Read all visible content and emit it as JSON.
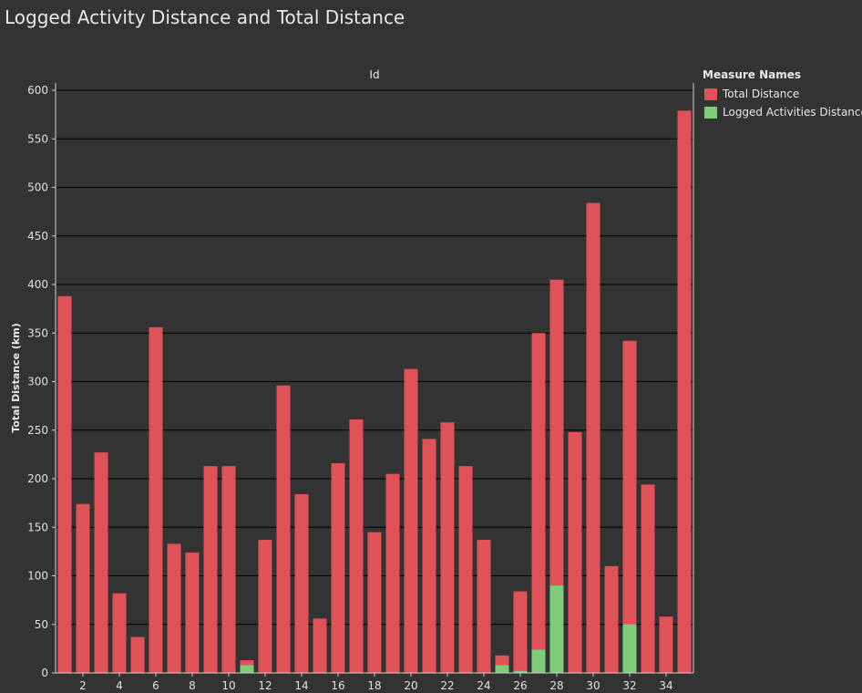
{
  "chart_data": {
    "type": "bar",
    "title": "Logged Activity Distance and Total Distance",
    "column_header": "Id",
    "ylabel": "Total Distance (km)",
    "ylim": [
      0,
      600
    ],
    "yticks": [
      0,
      50,
      100,
      150,
      200,
      250,
      300,
      350,
      400,
      450,
      500,
      550,
      600
    ],
    "grid": true,
    "legend": {
      "title": "Measure Names",
      "position": "top-right"
    },
    "categories": [
      1,
      2,
      3,
      4,
      5,
      6,
      7,
      8,
      9,
      10,
      11,
      12,
      13,
      14,
      15,
      16,
      17,
      18,
      19,
      20,
      21,
      22,
      23,
      24,
      25,
      26,
      27,
      28,
      29,
      30,
      31,
      32,
      33,
      34,
      35
    ],
    "xtick_labels": [
      "2",
      "4",
      "6",
      "8",
      "10",
      "12",
      "14",
      "16",
      "18",
      "20",
      "22",
      "24",
      "26",
      "28",
      "30",
      "32",
      "34"
    ],
    "series": [
      {
        "name": "Total Distance",
        "color": "#e05259",
        "values": [
          388,
          174,
          227,
          82,
          37,
          356,
          133,
          124,
          213,
          213,
          13,
          137,
          296,
          184,
          56,
          216,
          261,
          145,
          205,
          313,
          241,
          258,
          213,
          137,
          18,
          84,
          350,
          405,
          248,
          484,
          110,
          342,
          194,
          58,
          579
        ]
      },
      {
        "name": "Logged Activities Distance",
        "color": "#7ecb7a",
        "values": [
          0,
          0,
          0,
          0,
          0,
          0,
          0,
          0,
          0,
          0,
          8,
          0,
          0,
          0,
          0,
          0,
          0,
          0,
          0,
          0,
          0,
          0,
          0,
          0,
          8,
          2,
          24,
          90,
          0,
          0,
          0,
          50,
          0,
          0,
          0
        ]
      }
    ]
  }
}
